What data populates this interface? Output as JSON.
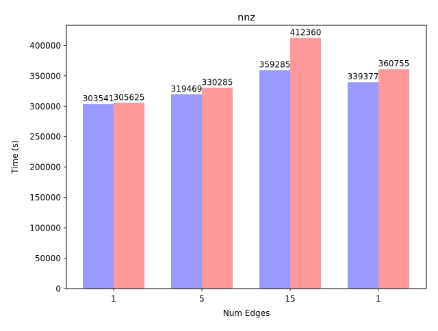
{
  "chart_data": {
    "type": "bar",
    "title": "nnz",
    "xlabel": "Num Edges",
    "ylabel": "Time (s)",
    "categories": [
      "1",
      "5",
      "15",
      "1"
    ],
    "series": [
      {
        "values": [
          303541,
          319469,
          359285,
          339377
        ],
        "color": "#9999ff"
      },
      {
        "values": [
          305625,
          330285,
          412360,
          360755
        ],
        "color": "#ff9999"
      }
    ],
    "ylim": [
      0,
      433000
    ],
    "yticks": [
      0,
      50000,
      100000,
      150000,
      200000,
      250000,
      300000,
      350000,
      400000
    ],
    "grid": false,
    "legend": "none",
    "value_labels": true
  }
}
